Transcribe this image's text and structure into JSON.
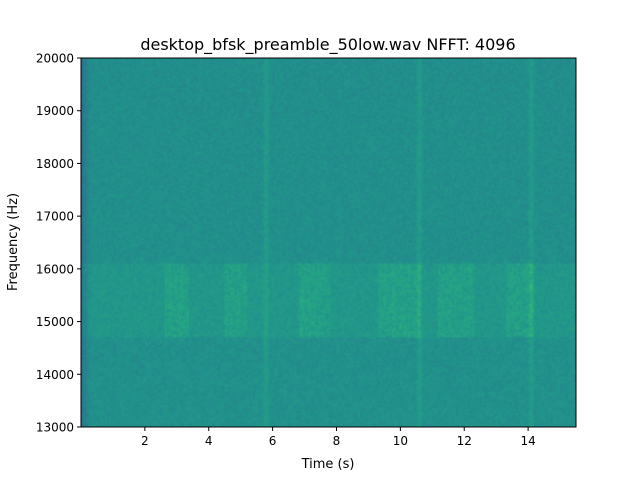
{
  "chart_data": {
    "type": "heatmap",
    "title": "desktop_bfsk_preamble_50low.wav  NFFT: 4096",
    "xlabel": "Time (s)",
    "ylabel": "Frequency (Hz)",
    "xlim": [
      0,
      15.5
    ],
    "ylim": [
      13000,
      20000
    ],
    "x_ticks": [
      2,
      4,
      6,
      8,
      10,
      12,
      14
    ],
    "y_ticks": [
      13000,
      14000,
      15000,
      16000,
      17000,
      18000,
      19000,
      20000
    ],
    "colormap": "viridis",
    "base_level": 0.5,
    "grid": false,
    "features": {
      "energy_band_hz": [
        14700,
        16100
      ],
      "energy_band_level": 0.58,
      "active_segments_s": [
        [
          2.6,
          3.4
        ],
        [
          4.5,
          5.2
        ],
        [
          6.8,
          7.8
        ],
        [
          9.3,
          10.6
        ],
        [
          11.2,
          12.3
        ],
        [
          13.3,
          14.2
        ]
      ],
      "broadband_stripes_s": [
        5.8,
        10.6,
        14.1
      ],
      "low_energy_edge_s": [
        0,
        0.3
      ]
    }
  }
}
